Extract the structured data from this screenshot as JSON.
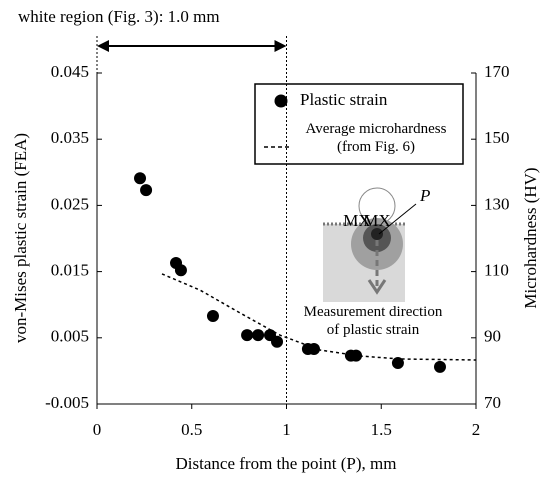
{
  "chart_data": {
    "type": "scatter",
    "annotation": {
      "text": "white region (Fig. 3): 1.0 mm",
      "span": [
        0,
        1
      ]
    },
    "xlabel": "Distance from the point (P), mm",
    "ylabel": "von-Mises plastic strain  (FEA)",
    "y2label": "Microhardness (HV)",
    "xlim": [
      0,
      2
    ],
    "xticks": [
      0,
      0.5,
      1,
      1.5,
      2
    ],
    "ylim": [
      -0.005,
      0.045
    ],
    "yticks": [
      -0.005,
      0.005,
      0.015,
      0.025,
      0.035,
      0.045
    ],
    "y2lim": [
      70,
      170
    ],
    "y2ticks": [
      70,
      90,
      110,
      130,
      150,
      170
    ],
    "legend": "upper right",
    "series": [
      {
        "name": "Plastic strain",
        "color": "#000000",
        "marker": "circle",
        "x": [
          0.227,
          0.259,
          0.417,
          0.443,
          0.612,
          0.792,
          0.85,
          0.913,
          0.95,
          1.113,
          1.145,
          1.34,
          1.367,
          1.588,
          1.81
        ],
        "values": [
          0.0291,
          0.0273,
          0.0163,
          0.0152,
          0.0083,
          0.0054,
          0.0054,
          0.0054,
          0.0044,
          0.0033,
          0.0033,
          0.0023,
          0.0023,
          0.0012,
          0.0006
        ]
      },
      {
        "name": "Average microhardness (from Fig. 6)",
        "color": "#000000",
        "axis": "y2",
        "line_style": "dotted",
        "x": [
          0.343,
          0.544,
          0.755,
          0.966,
          1.177,
          1.388,
          1.6,
          2.0
        ],
        "values": [
          109.3,
          104.4,
          97.5,
          90.8,
          86.3,
          84.5,
          83.6,
          83.3
        ]
      }
    ],
    "inset": {
      "point_label": "P",
      "small_labels": [
        "MX",
        "MX"
      ],
      "caption": "Measurement direction of plastic strain"
    }
  }
}
